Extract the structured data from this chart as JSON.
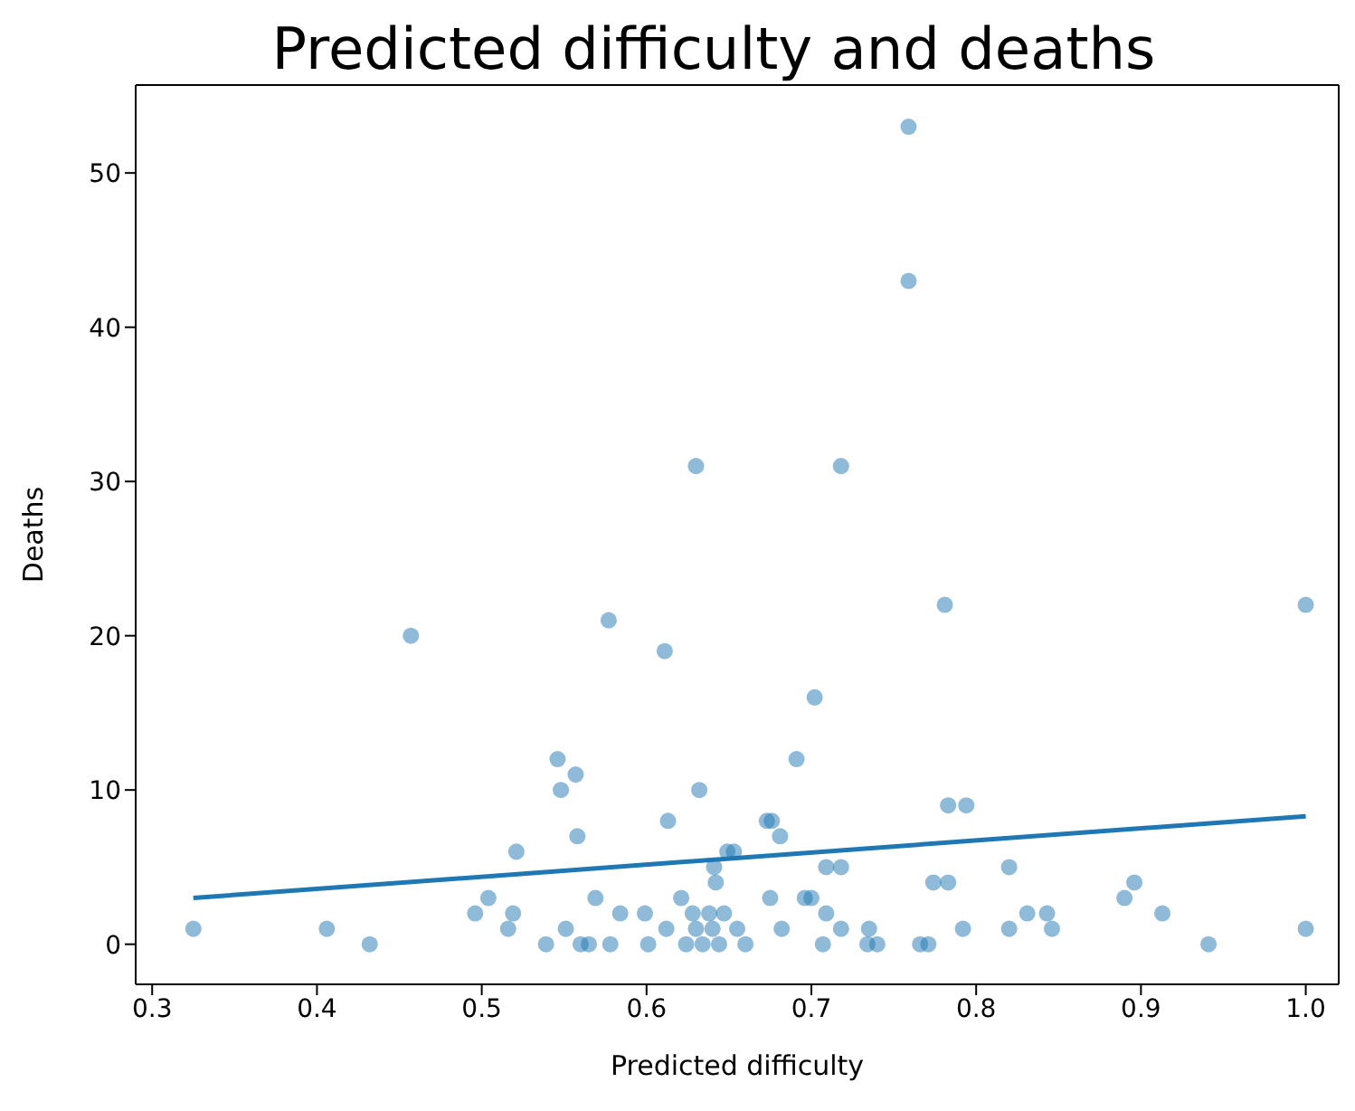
{
  "chart_data": {
    "type": "scatter",
    "title": "Predicted difficulty and deaths",
    "xlabel": "Predicted difficulty",
    "ylabel": "Deaths",
    "xlim": [
      0.29,
      1.02
    ],
    "xticks": [
      {
        "value": 0.3,
        "label": "0.3"
      },
      {
        "value": 0.4,
        "label": "0.4"
      },
      {
        "value": 0.5,
        "label": "0.5"
      },
      {
        "value": 0.6,
        "label": "0.6"
      },
      {
        "value": 0.7,
        "label": "0.7"
      },
      {
        "value": 0.8,
        "label": "0.8"
      },
      {
        "value": 0.9,
        "label": "0.9"
      },
      {
        "value": 1.0,
        "label": "1.0"
      }
    ],
    "ylim": [
      -2.6,
      55.7
    ],
    "yticks": [
      0,
      10,
      20,
      30,
      40,
      50
    ],
    "series": [
      {
        "marker": "circle",
        "color": "#1f77b4",
        "x": [
          0.325,
          0.406,
          0.432,
          0.457,
          0.496,
          0.504,
          0.516,
          0.519,
          0.521,
          0.539,
          0.546,
          0.548,
          0.551,
          0.557,
          0.558,
          0.56,
          0.565,
          0.569,
          0.577,
          0.578,
          0.584,
          0.599,
          0.601,
          0.611,
          0.612,
          0.613,
          0.621,
          0.624,
          0.628,
          0.63,
          0.632,
          0.63,
          0.634,
          0.638,
          0.64,
          0.641,
          0.642,
          0.644,
          0.647,
          0.649,
          0.653,
          0.655,
          0.66,
          0.673,
          0.676,
          0.681,
          0.675,
          0.682,
          0.691,
          0.696,
          0.7,
          0.702,
          0.707,
          0.709,
          0.709,
          0.718,
          0.718,
          0.718,
          0.734,
          0.735,
          0.74,
          0.759,
          0.759,
          0.766,
          0.771,
          0.774,
          0.781,
          0.783,
          0.783,
          0.792,
          0.794,
          0.82,
          0.82,
          0.831,
          0.843,
          0.846,
          0.89,
          0.896,
          0.913,
          0.941,
          1.0,
          1.0
        ],
        "values": [
          1,
          1,
          0,
          20,
          2,
          3,
          1,
          2,
          6,
          0,
          12,
          10,
          1,
          11,
          7,
          0,
          0,
          3,
          21,
          0,
          2,
          2,
          0,
          19,
          1,
          8,
          3,
          0,
          2,
          31,
          10,
          1,
          0,
          2,
          1,
          5,
          4,
          0,
          2,
          6,
          6,
          1,
          0,
          8,
          8,
          7,
          3,
          1,
          12,
          3,
          3,
          16,
          0,
          5,
          2,
          5,
          1,
          31,
          0,
          1,
          0,
          53,
          43,
          0,
          0,
          4,
          22,
          4,
          9,
          1,
          9,
          5,
          1,
          2,
          2,
          1,
          3,
          4,
          2,
          0,
          22,
          1
        ]
      },
      {
        "type": "line",
        "color": "#1f77b4",
        "x": [
          0.325,
          1.0
        ],
        "values": [
          3.0,
          8.3
        ]
      }
    ]
  }
}
